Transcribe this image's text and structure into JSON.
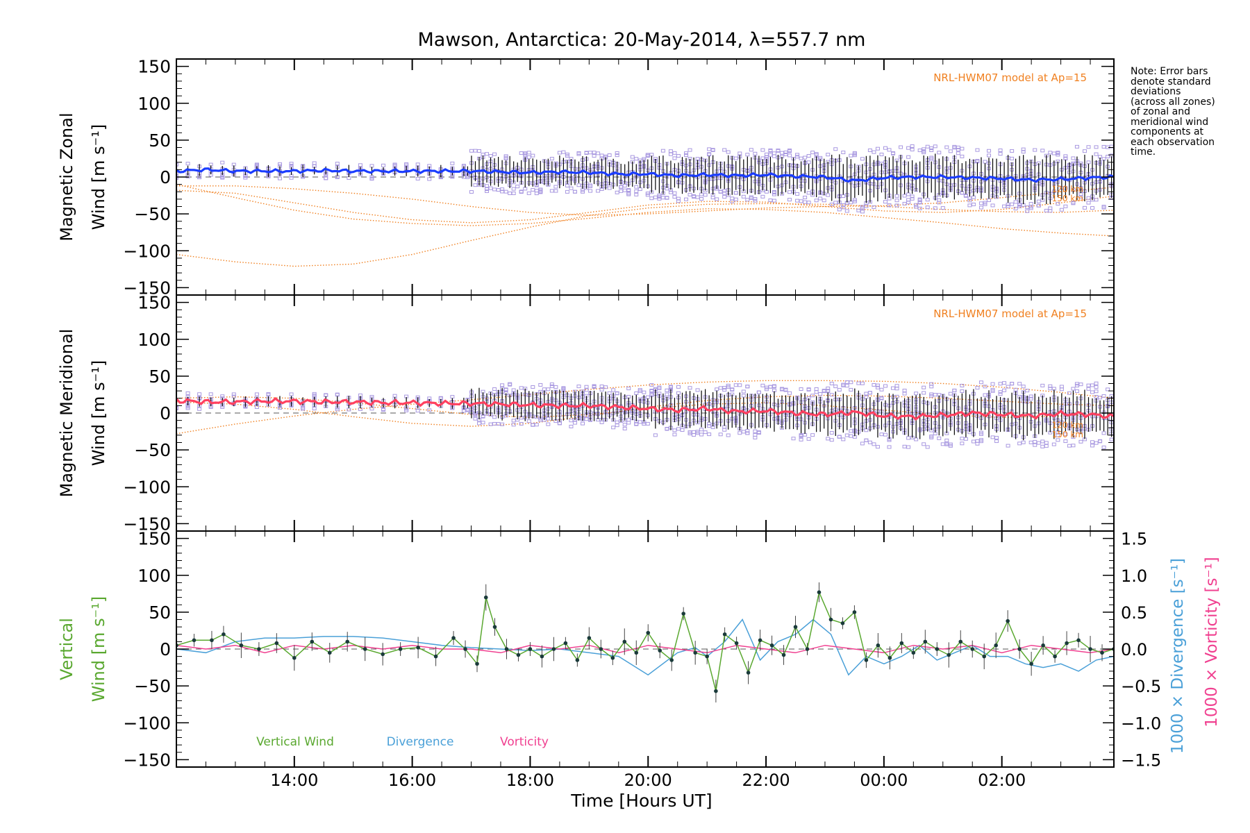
{
  "title": "Mawson, Antarctica: 20-May-2014, λ=557.7 nm",
  "note_lines": [
    "Note: Error bars",
    "denote standard",
    "deviations",
    "(across all zones)",
    "of zonal and",
    "meridional wind",
    "components at",
    "each observation",
    "time."
  ],
  "model_label": "NRL-HWM07 model at Ap=15",
  "model_height_labels": [
    "120 km",
    "150 km"
  ],
  "xlabel": "Time [Hours UT]",
  "x_ticks": [
    {
      "x": 14,
      "label": "14:00"
    },
    {
      "x": 16,
      "label": "16:00"
    },
    {
      "x": 18,
      "label": "18:00"
    },
    {
      "x": 20,
      "label": "20:00"
    },
    {
      "x": 22,
      "label": "22:00"
    },
    {
      "x": 24,
      "label": "00:00"
    },
    {
      "x": 26,
      "label": "02:00"
    }
  ],
  "colors": {
    "zonal": "#1a3cff",
    "meridional": "#ff4060",
    "vertical": "#5aa830",
    "divergence": "#4aa0d8",
    "vorticity": "#f04090",
    "model": "#f08020",
    "scatter": "#a898e0",
    "axis": "#000000"
  },
  "chart_data": [
    {
      "type": "line",
      "title": "Mawson, Antarctica: 20-May-2014, λ=557.7 nm",
      "ylabel_line1": "Magnetic Zonal",
      "ylabel_line2": "Wind [m s⁻¹]",
      "xlim": [
        12.0,
        27.9
      ],
      "ylim": [
        -160,
        160
      ],
      "y_ticks": [
        -150,
        -100,
        -50,
        0,
        50,
        100,
        150
      ],
      "annotation": "NRL-HWM07 model at Ap=15",
      "series": [
        {
          "kind": "mean",
          "x": [
            12,
            12.5,
            13,
            13.5,
            14,
            14.5,
            15,
            15.5,
            16,
            16.5,
            17,
            17.5,
            18,
            18.5,
            19,
            19.5,
            20,
            20.5,
            21,
            21.5,
            22,
            22.5,
            23,
            23.5,
            24,
            24.5,
            25,
            25.5,
            26,
            26.5,
            27,
            27.5,
            27.9
          ],
          "y": [
            8,
            10,
            8,
            8,
            8,
            9,
            8,
            8,
            8,
            8,
            8,
            7,
            6,
            7,
            6,
            4,
            4,
            2,
            3,
            2,
            3,
            1,
            0,
            -5,
            -1,
            0,
            0,
            -1,
            -2,
            -4,
            -3,
            -1,
            0
          ]
        },
        {
          "kind": "model",
          "x": [
            12,
            13,
            14,
            15,
            16,
            17,
            18,
            19,
            20,
            21,
            22,
            23,
            24,
            25,
            26,
            27,
            27.9
          ],
          "y": [
            -105,
            -115,
            -121,
            -118,
            -105,
            -86,
            -68,
            -52,
            -42,
            -37,
            -36,
            -37,
            -40,
            -44,
            -47,
            -48,
            -45
          ]
        },
        {
          "kind": "model",
          "x": [
            12,
            13,
            14,
            15,
            16,
            17,
            18,
            19,
            20,
            21,
            22,
            23,
            24,
            25,
            26,
            27,
            27.9
          ],
          "y": [
            -10,
            -28,
            -45,
            -57,
            -63,
            -66,
            -63,
            -56,
            -48,
            -43,
            -44,
            -48,
            -55,
            -62,
            -70,
            -76,
            -80
          ]
        },
        {
          "kind": "model",
          "x": [
            12,
            13,
            14,
            15,
            16,
            17,
            18,
            19,
            20,
            21,
            22,
            23,
            24,
            25,
            26,
            27,
            27.9
          ],
          "y": [
            -18,
            -22,
            -35,
            -48,
            -58,
            -62,
            -58,
            -48,
            -38,
            -33,
            -34,
            -40,
            -46,
            -48,
            -44,
            -35,
            -26
          ]
        },
        {
          "kind": "model",
          "x": [
            12,
            13,
            14,
            15,
            16,
            17,
            18,
            19,
            20,
            21,
            22,
            23,
            24,
            25,
            26,
            27,
            27.9
          ],
          "y": [
            -12,
            -12,
            -16,
            -22,
            -30,
            -40,
            -48,
            -52,
            -50,
            -46,
            -42,
            -40,
            -39,
            -35,
            -28,
            -20,
            -14
          ]
        }
      ]
    },
    {
      "type": "line",
      "ylabel_line1": "Magnetic Meridional",
      "ylabel_line2": "Wind [m s⁻¹]",
      "xlim": [
        12.0,
        27.9
      ],
      "ylim": [
        -160,
        160
      ],
      "y_ticks": [
        -150,
        -100,
        -50,
        0,
        50,
        100,
        150
      ],
      "annotation": "NRL-HWM07 model at Ap=15",
      "series": [
        {
          "kind": "mean",
          "x": [
            12,
            12.5,
            13,
            13.5,
            14,
            14.5,
            15,
            15.5,
            16,
            16.5,
            17,
            17.5,
            18,
            18.5,
            19,
            19.5,
            20,
            20.5,
            21,
            21.5,
            22,
            22.5,
            23,
            23.5,
            24,
            24.5,
            25,
            25.5,
            26,
            26.5,
            27,
            27.5,
            27.9
          ],
          "y": [
            17,
            15,
            15,
            16,
            16,
            15,
            15,
            14,
            14,
            13,
            13,
            12,
            11,
            10,
            10,
            8,
            6,
            4,
            6,
            2,
            3,
            0,
            -2,
            1,
            -4,
            -5,
            -3,
            0,
            -2,
            -4,
            -1,
            -2,
            -5
          ]
        },
        {
          "kind": "model",
          "x": [
            12,
            13,
            14,
            15,
            16,
            17,
            18,
            19,
            20,
            21,
            22,
            23,
            24,
            25,
            26,
            27,
            27.9
          ],
          "y": [
            -28,
            -15,
            -4,
            5,
            12,
            18,
            25,
            32,
            38,
            42,
            44,
            44,
            43,
            40,
            35,
            28,
            20
          ]
        },
        {
          "kind": "model",
          "x": [
            12,
            13,
            14,
            15,
            16,
            17,
            18,
            19,
            20,
            21,
            22,
            23,
            24,
            25,
            26,
            27,
            27.9
          ],
          "y": [
            15,
            12,
            5,
            -5,
            -14,
            -18,
            -14,
            -4,
            8,
            17,
            22,
            24,
            23,
            20,
            16,
            12,
            10
          ]
        },
        {
          "kind": "model",
          "x": [
            12,
            13,
            14,
            15,
            16,
            17,
            18,
            19,
            20,
            21,
            22,
            23,
            24,
            25,
            26,
            27,
            27.9
          ],
          "y": [
            20,
            22,
            20,
            14,
            6,
            -2,
            -6,
            -2,
            6,
            12,
            14,
            10,
            4,
            -2,
            -6,
            -4,
            0
          ]
        }
      ]
    },
    {
      "type": "line",
      "ylabel_line1": "Vertical",
      "ylabel_line2": "Wind [m s⁻¹]",
      "y2label_blue": "1000 × Divergence [s⁻¹]",
      "y2label_red": "1000 × Vorticity [s⁻¹]",
      "xlim": [
        12.0,
        27.9
      ],
      "ylim": [
        -160,
        160
      ],
      "y2lim": [
        -1.6,
        1.6
      ],
      "y_ticks": [
        -150,
        -100,
        -50,
        0,
        50,
        100,
        150
      ],
      "y2_ticks": [
        -1.5,
        -1.0,
        -0.5,
        0.0,
        0.5,
        1.0,
        1.5
      ],
      "y2_tick_labels": [
        "−1.5",
        "−1.0",
        "−0.5",
        "0.0",
        "0.5",
        "1.0",
        "1.5"
      ],
      "legend": [
        "Vertical Wind",
        "Divergence",
        "Vorticity"
      ],
      "series": [
        {
          "name": "Vertical Wind",
          "kind": "vertical",
          "x": [
            12.0,
            12.3,
            12.6,
            12.8,
            13.1,
            13.4,
            13.7,
            14.0,
            14.3,
            14.6,
            14.9,
            15.2,
            15.5,
            15.8,
            16.1,
            16.4,
            16.7,
            16.9,
            17.1,
            17.25,
            17.4,
            17.6,
            17.8,
            18.0,
            18.2,
            18.4,
            18.6,
            18.8,
            19.0,
            19.2,
            19.4,
            19.6,
            19.8,
            20.0,
            20.2,
            20.4,
            20.6,
            20.8,
            21.0,
            21.15,
            21.3,
            21.5,
            21.7,
            21.9,
            22.1,
            22.3,
            22.5,
            22.7,
            22.9,
            23.1,
            23.3,
            23.5,
            23.7,
            23.9,
            24.1,
            24.3,
            24.5,
            24.7,
            24.9,
            25.1,
            25.3,
            25.5,
            25.7,
            25.9,
            26.1,
            26.3,
            26.5,
            26.7,
            26.9,
            27.1,
            27.3,
            27.5,
            27.7,
            27.9
          ],
          "y": [
            5,
            12,
            12,
            20,
            5,
            0,
            8,
            -12,
            10,
            -5,
            10,
            0,
            -7,
            0,
            2,
            -10,
            15,
            0,
            -20,
            70,
            30,
            0,
            -8,
            0,
            -10,
            0,
            8,
            -15,
            15,
            0,
            -12,
            10,
            -5,
            22,
            -2,
            -15,
            48,
            -5,
            -10,
            -57,
            20,
            8,
            -32,
            12,
            5,
            -8,
            30,
            0,
            77,
            40,
            35,
            50,
            -15,
            5,
            -12,
            8,
            -5,
            10,
            0,
            -8,
            10,
            0,
            -10,
            5,
            38,
            0,
            -20,
            5,
            -10,
            8,
            12,
            0,
            -5,
            0
          ]
        },
        {
          "name": "Divergence",
          "kind": "divergence",
          "x": [
            12.0,
            12.5,
            13.0,
            13.5,
            14.0,
            14.5,
            15.0,
            15.5,
            16.0,
            16.5,
            17.0,
            17.5,
            18.0,
            18.5,
            19.0,
            19.5,
            20.0,
            20.5,
            20.8,
            21.0,
            21.3,
            21.6,
            21.9,
            22.2,
            22.5,
            22.8,
            23.1,
            23.4,
            23.7,
            24.0,
            24.3,
            24.6,
            24.9,
            25.2,
            25.5,
            25.8,
            26.1,
            26.4,
            26.7,
            27.0,
            27.3,
            27.6,
            27.9
          ],
          "y": [
            0.0,
            -0.05,
            0.1,
            0.15,
            0.15,
            0.17,
            0.17,
            0.15,
            0.1,
            0.05,
            0.02,
            0.0,
            -0.02,
            0.0,
            -0.05,
            -0.1,
            -0.35,
            -0.05,
            0.02,
            -0.1,
            0.1,
            0.4,
            -0.15,
            0.1,
            0.2,
            0.4,
            0.2,
            -0.35,
            -0.1,
            -0.2,
            -0.1,
            0.05,
            -0.15,
            -0.05,
            0.05,
            -0.1,
            -0.1,
            -0.2,
            -0.25,
            -0.2,
            -0.3,
            -0.15,
            -0.1
          ]
        },
        {
          "name": "Vorticity",
          "kind": "vorticity",
          "x": [
            12.0,
            12.5,
            13.0,
            13.5,
            14.0,
            14.5,
            15.0,
            15.5,
            16.0,
            16.5,
            17.0,
            17.5,
            18.0,
            18.5,
            19.0,
            19.5,
            20.0,
            20.5,
            21.0,
            21.5,
            22.0,
            22.5,
            23.0,
            23.5,
            24.0,
            24.5,
            25.0,
            25.5,
            26.0,
            26.5,
            27.0,
            27.5,
            27.9
          ],
          "y": [
            0.05,
            0.0,
            0.05,
            -0.05,
            0.05,
            0.0,
            0.05,
            0.0,
            0.05,
            0.0,
            0.0,
            -0.05,
            0.05,
            0.0,
            0.05,
            -0.05,
            0.05,
            0.0,
            -0.05,
            0.05,
            0.0,
            -0.05,
            0.05,
            0.0,
            -0.05,
            0.05,
            0.0,
            0.05,
            -0.05,
            0.05,
            0.0,
            -0.05,
            0.0
          ]
        }
      ]
    }
  ]
}
